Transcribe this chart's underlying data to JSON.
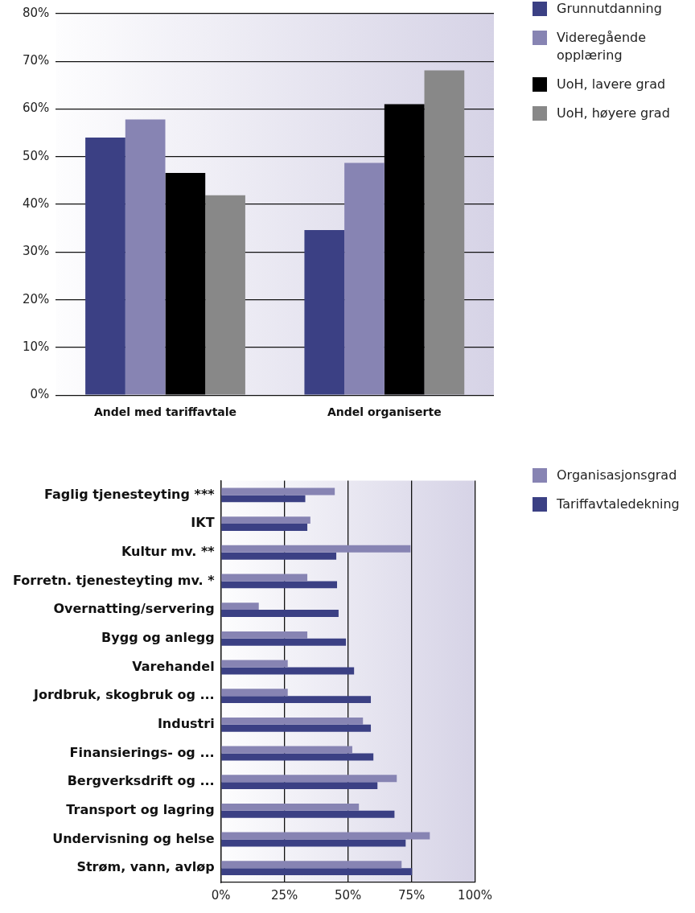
{
  "chart_data": [
    {
      "type": "bar",
      "categories": [
        "Andel med tariffavtale",
        "Andel organiserte"
      ],
      "series": [
        {
          "name": "Grunnutdanning",
          "color": "#3b4084",
          "values": [
            54.0,
            34.6
          ]
        },
        {
          "name": "Videregående opplæring",
          "color": "#8784b3",
          "values": [
            57.8,
            48.7
          ]
        },
        {
          "name": "UoH, lavere grad",
          "color": "#000000",
          "values": [
            46.6,
            61.0
          ]
        },
        {
          "name": "UoH, høyere grad",
          "color": "#888888",
          "values": [
            41.9,
            68.1
          ]
        }
      ],
      "ylim": [
        0,
        80
      ],
      "yticks": [
        {
          "value": 0,
          "label": "0%"
        },
        {
          "value": 10,
          "label": "10%"
        },
        {
          "value": 20,
          "label": "20%"
        },
        {
          "value": 30,
          "label": "30%"
        },
        {
          "value": 40,
          "label": "40%"
        },
        {
          "value": 50,
          "label": "50%"
        },
        {
          "value": 60,
          "label": "60%"
        },
        {
          "value": 70,
          "label": "70%"
        },
        {
          "value": 80,
          "label": "80%"
        }
      ],
      "grid": "y",
      "legend": "right"
    },
    {
      "type": "bar",
      "orientation": "horizontal",
      "categories": [
        "Faglig tjenesteyting ***",
        "IKT",
        "Kultur mv. **",
        "Forretn. tjenesteyting mv. *",
        "Overnatting/servering",
        "Bygg og anlegg",
        "Varehandel",
        "Jordbruk, skogbruk og ...",
        "Industri",
        "Finansierings- og ...",
        "Bergverksdrift og ...",
        "Transport og lagring",
        "Undervisning og helse",
        "Strøm, vann, avløp"
      ],
      "series": [
        {
          "name": "Organisasjonsgrad",
          "color": "#8784b3",
          "values": [
            44.8,
            35.2,
            74.6,
            34.0,
            14.9,
            34.0,
            26.3,
            26.3,
            55.9,
            51.7,
            69.2,
            54.3,
            82.2,
            71.1
          ]
        },
        {
          "name": "Tariffavtaledekning",
          "color": "#3b4084",
          "values": [
            33.2,
            34.0,
            45.4,
            45.7,
            46.3,
            49.2,
            52.4,
            59.0,
            59.0,
            60.0,
            61.6,
            68.3,
            72.7,
            75.2
          ]
        }
      ],
      "xlim": [
        0,
        100
      ],
      "xticks": [
        {
          "value": 0,
          "label": "0%"
        },
        {
          "value": 25,
          "label": "25%"
        },
        {
          "value": 50,
          "label": "50%"
        },
        {
          "value": 75,
          "label": "75%"
        },
        {
          "value": 100,
          "label": "100%"
        }
      ],
      "grid": "x",
      "legend": "right"
    }
  ]
}
